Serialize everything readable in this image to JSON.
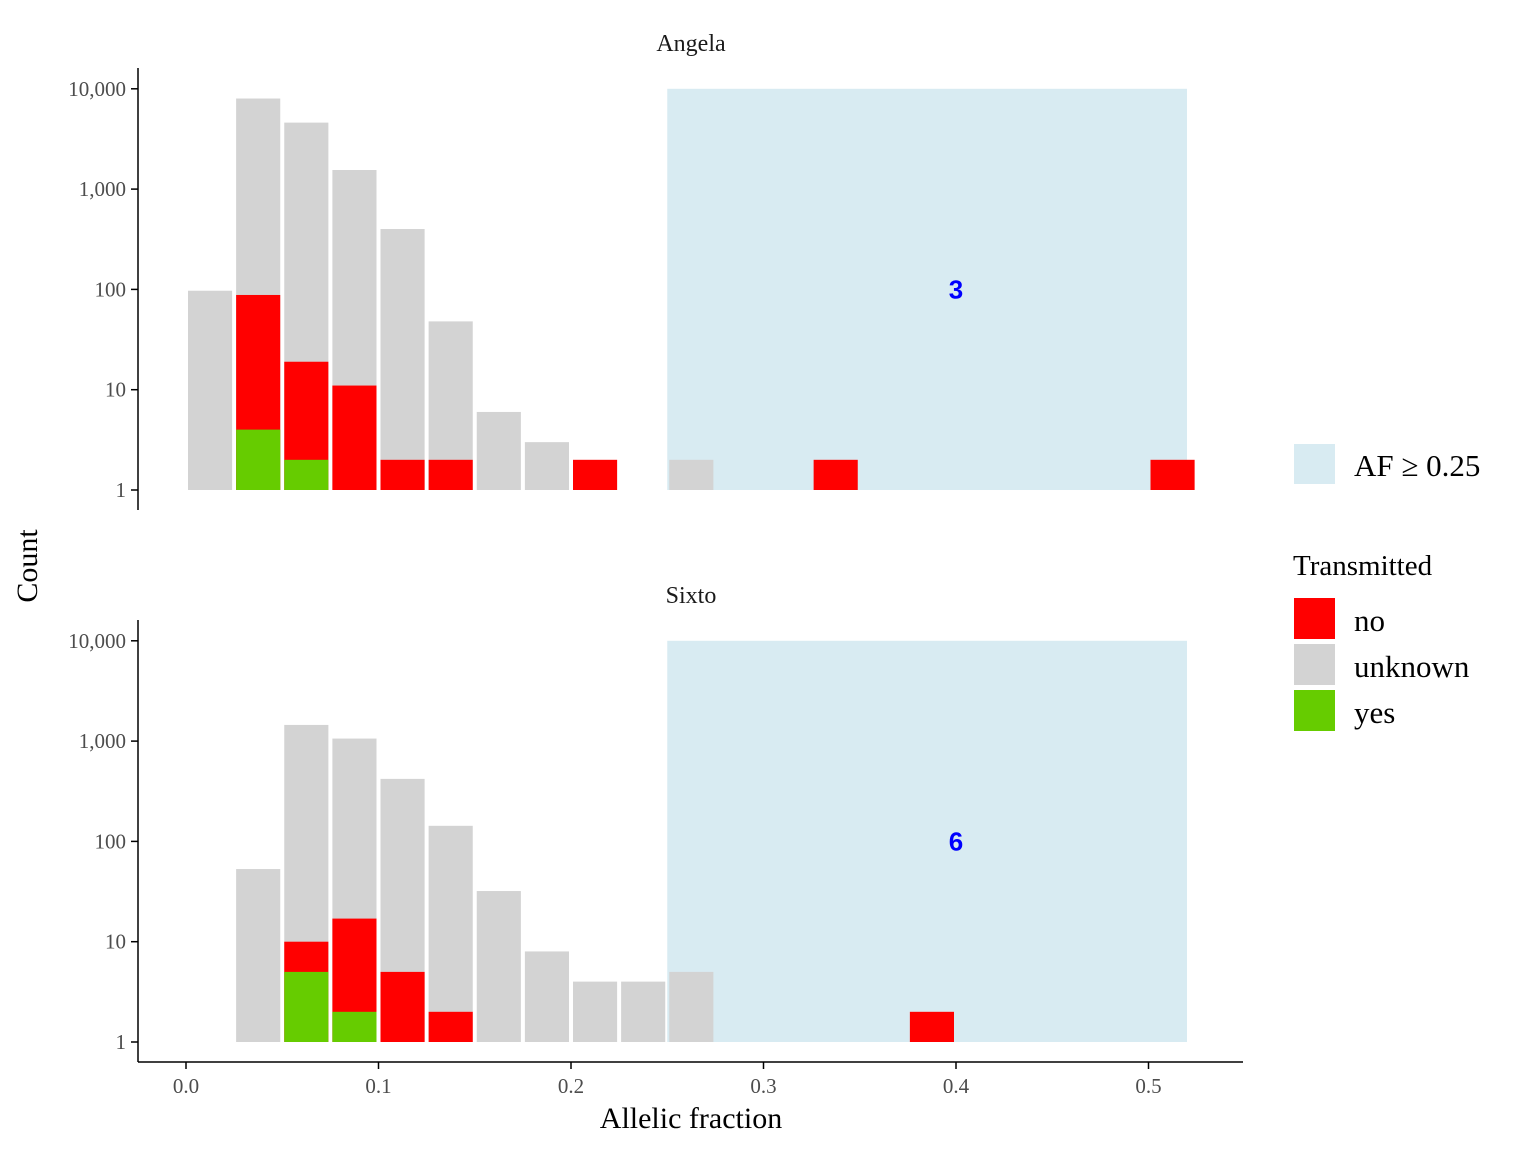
{
  "chart_data": {
    "type": "bar",
    "stacked": true,
    "y_scale": "log10",
    "xlabel": "Allelic fraction",
    "ylabel": "Count",
    "x_ticks": [
      0.0,
      0.1,
      0.2,
      0.3,
      0.4,
      0.5
    ],
    "x_tick_labels": [
      "0.0",
      "0.1",
      "0.2",
      "0.3",
      "0.4",
      "0.5"
    ],
    "y_ticks": [
      1,
      10,
      100,
      1000,
      10000
    ],
    "y_tick_labels": [
      "1",
      "10",
      "100",
      "1,000",
      "10,000"
    ],
    "bin_width": 0.025,
    "colors": {
      "no": "#ff0000",
      "unknown": "#d3d3d3",
      "yes": "#66cc00",
      "highlight": "#d8ebf2",
      "annotation": "#0000ff"
    },
    "highlight": {
      "label": "AF ≥ 0.25",
      "xmin": 0.25,
      "xmax": 0.52
    },
    "legend": {
      "title": "Transmitted",
      "entries": [
        {
          "key": "no",
          "label": "no"
        },
        {
          "key": "unknown",
          "label": "unknown"
        },
        {
          "key": "yes",
          "label": "yes"
        }
      ]
    },
    "panels": [
      {
        "title": "Angela",
        "annotation": {
          "text": "3",
          "x": 0.4,
          "y": 100
        },
        "bins": [
          {
            "x": 0.0,
            "total": 97,
            "no": 0,
            "yes": 0
          },
          {
            "x": 0.025,
            "total": 8000,
            "no": 88,
            "yes": 4
          },
          {
            "x": 0.05,
            "total": 4600,
            "no": 19,
            "yes": 2
          },
          {
            "x": 0.075,
            "total": 1550,
            "no": 11,
            "yes": 0
          },
          {
            "x": 0.1,
            "total": 400,
            "no": 2,
            "yes": 0
          },
          {
            "x": 0.125,
            "total": 48,
            "no": 2,
            "yes": 0
          },
          {
            "x": 0.15,
            "total": 6,
            "no": 0,
            "yes": 0
          },
          {
            "x": 0.175,
            "total": 3,
            "no": 0,
            "yes": 0
          },
          {
            "x": 0.2,
            "total": 2,
            "no": 2,
            "yes": 0
          },
          {
            "x": 0.25,
            "total": 2,
            "no": 0,
            "yes": 0
          },
          {
            "x": 0.325,
            "total": 2,
            "no": 2,
            "yes": 0
          },
          {
            "x": 0.5,
            "total": 2,
            "no": 2,
            "yes": 0
          }
        ]
      },
      {
        "title": "Sixto",
        "annotation": {
          "text": "6",
          "x": 0.4,
          "y": 100
        },
        "bins": [
          {
            "x": 0.025,
            "total": 53,
            "no": 0,
            "yes": 0
          },
          {
            "x": 0.05,
            "total": 1450,
            "no": 10,
            "yes": 5
          },
          {
            "x": 0.075,
            "total": 1060,
            "no": 17,
            "yes": 2
          },
          {
            "x": 0.1,
            "total": 420,
            "no": 5,
            "yes": 0
          },
          {
            "x": 0.125,
            "total": 143,
            "no": 2,
            "yes": 0
          },
          {
            "x": 0.15,
            "total": 32,
            "no": 0,
            "yes": 0
          },
          {
            "x": 0.175,
            "total": 8,
            "no": 0,
            "yes": 0
          },
          {
            "x": 0.2,
            "total": 4,
            "no": 0,
            "yes": 0
          },
          {
            "x": 0.225,
            "total": 4,
            "no": 0,
            "yes": 0
          },
          {
            "x": 0.25,
            "total": 5,
            "no": 0,
            "yes": 0
          },
          {
            "x": 0.375,
            "total": 2,
            "no": 2,
            "yes": 0
          }
        ]
      }
    ]
  }
}
